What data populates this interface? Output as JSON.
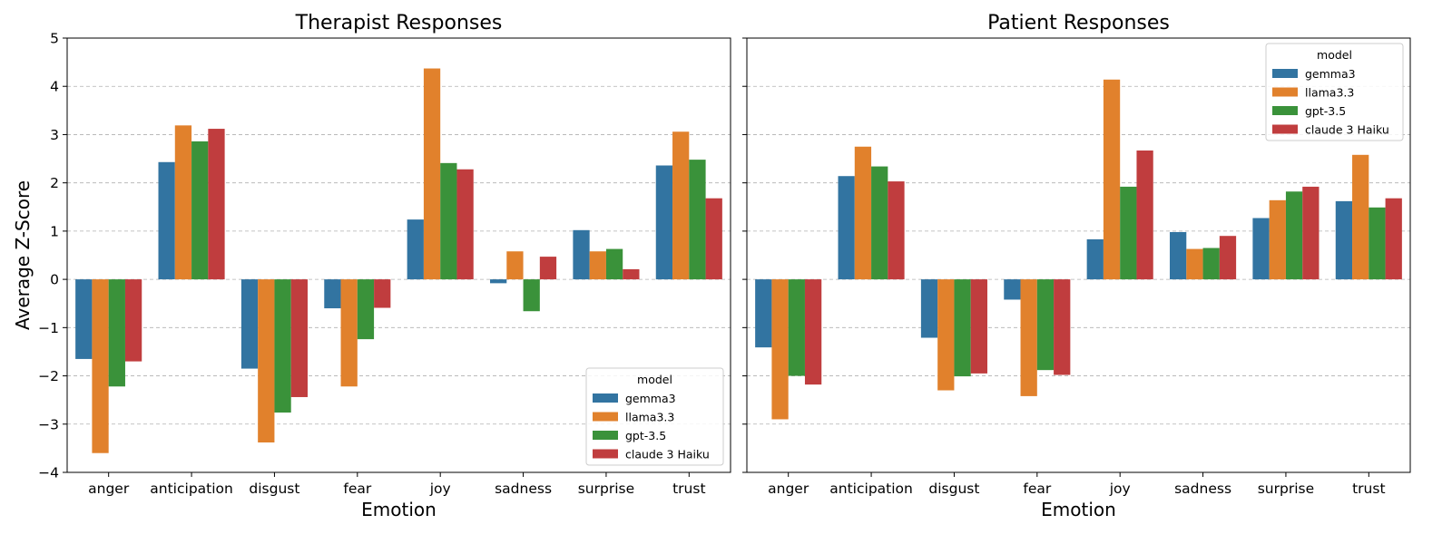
{
  "chart_data": {
    "type": "bar",
    "ylabel": "Average Z-Score",
    "xlabel": "Emotion",
    "ylim": [
      -4,
      5
    ],
    "yticks": [
      -4,
      -3,
      -2,
      -1,
      0,
      1,
      2,
      3,
      4,
      5
    ],
    "ytick_labels": [
      "−4",
      "−3",
      "−2",
      "−1",
      "0",
      "1",
      "2",
      "3",
      "4",
      "5"
    ],
    "grid": "horizontal dashed",
    "shared_y": true,
    "categories": [
      "anger",
      "anticipation",
      "disgust",
      "fear",
      "joy",
      "sadness",
      "surprise",
      "trust"
    ],
    "legend_title": "model",
    "series_colors": [
      "#3274a1",
      "#e1812c",
      "#3a923a",
      "#c03d3e"
    ],
    "panels": [
      {
        "title": "Therapist Responses",
        "legend_position": "lower-right",
        "series": [
          {
            "name": "gemma3",
            "values": [
              -1.65,
              2.43,
              -1.85,
              -0.6,
              1.24,
              -0.08,
              1.02,
              2.36
            ]
          },
          {
            "name": "llama3.3",
            "values": [
              -3.6,
              3.19,
              -3.38,
              -2.22,
              4.37,
              0.58,
              0.58,
              3.06
            ]
          },
          {
            "name": "gpt-3.5",
            "values": [
              -2.22,
              2.86,
              -2.76,
              -1.24,
              2.41,
              -0.66,
              0.63,
              2.48
            ]
          },
          {
            "name": "claude 3 Haiku",
            "values": [
              -1.7,
              3.12,
              -2.44,
              -0.59,
              2.28,
              0.47,
              0.21,
              1.68
            ]
          }
        ]
      },
      {
        "title": "Patient Responses",
        "legend_position": "upper-right",
        "series": [
          {
            "name": "gemma3",
            "values": [
              -1.41,
              2.14,
              -1.21,
              -0.42,
              0.83,
              0.98,
              1.27,
              1.62
            ]
          },
          {
            "name": "llama3.3",
            "values": [
              -2.9,
              2.75,
              -2.3,
              -2.42,
              4.14,
              0.63,
              1.64,
              2.58
            ]
          },
          {
            "name": "gpt-3.5",
            "values": [
              -2.0,
              2.34,
              -2.01,
              -1.88,
              1.92,
              0.65,
              1.82,
              1.49
            ]
          },
          {
            "name": "claude 3 Haiku",
            "values": [
              -2.18,
              2.03,
              -1.95,
              -1.98,
              2.67,
              0.9,
              1.92,
              1.68
            ]
          }
        ]
      }
    ]
  }
}
